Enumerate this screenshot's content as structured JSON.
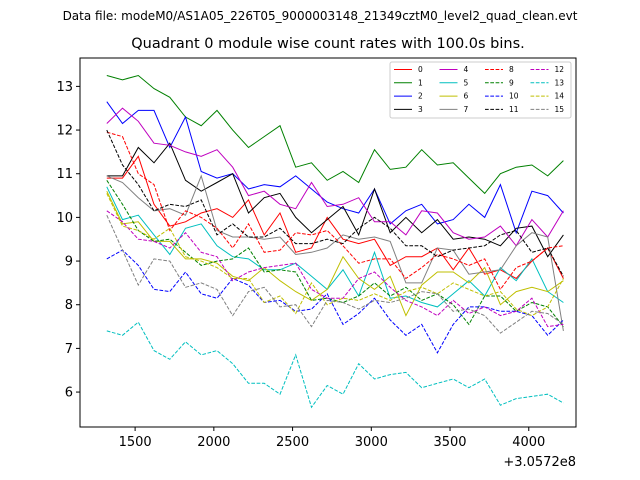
{
  "chart_data": {
    "type": "line",
    "suptitle": "Data file: modeM0/AS1A05_226T05_9000003148_21349cztM0_level2_quad_clean.evt",
    "title": "Quadrant 0 module wise count rates with 100.0s bins.",
    "xlabel": "",
    "ylabel": "",
    "x_offset_label": "+3.0572e8",
    "xlim": [
      1150,
      4300
    ],
    "ylim": [
      5.2,
      13.65
    ],
    "xticks": [
      1500,
      2000,
      2500,
      3000,
      3500,
      4000
    ],
    "yticks": [
      6,
      7,
      8,
      9,
      10,
      11,
      12,
      13
    ],
    "x": [
      1320,
      1420,
      1520,
      1620,
      1720,
      1820,
      1920,
      2020,
      2120,
      2220,
      2320,
      2420,
      2520,
      2620,
      2720,
      2820,
      2920,
      3020,
      3120,
      3220,
      3320,
      3420,
      3520,
      3620,
      3720,
      3820,
      3920,
      4020,
      4120,
      4220
    ],
    "legend": {
      "loc": "upper right",
      "ncol": 4
    },
    "series": [
      {
        "name": "0",
        "color": "#ff0000",
        "dash": "solid",
        "values": [
          10.9,
          10.9,
          11.4,
          10.3,
          9.8,
          9.9,
          10.1,
          10.2,
          10.0,
          10.4,
          9.6,
          10.1,
          9.2,
          9.3,
          10.0,
          9.5,
          9.4,
          9.5,
          8.9,
          9.1,
          9.1,
          9.3,
          8.8,
          9.3,
          8.7,
          8.8,
          8.6,
          9.0,
          9.3,
          8.6
        ]
      },
      {
        "name": "1",
        "color": "#008000",
        "dash": "solid",
        "values": [
          13.25,
          13.15,
          13.25,
          12.95,
          12.75,
          12.3,
          12.1,
          12.45,
          12.0,
          11.6,
          11.85,
          12.1,
          11.15,
          11.25,
          10.85,
          11.05,
          10.8,
          11.55,
          11.1,
          11.15,
          11.55,
          11.2,
          11.25,
          10.9,
          10.55,
          11.0,
          11.15,
          11.2,
          10.95,
          11.3
        ]
      },
      {
        "name": "2",
        "color": "#0000ff",
        "dash": "solid",
        "values": [
          12.65,
          12.15,
          12.45,
          12.45,
          11.6,
          12.3,
          11.05,
          10.9,
          11.0,
          10.65,
          10.75,
          10.7,
          10.95,
          10.65,
          10.35,
          10.2,
          10.1,
          10.65,
          9.85,
          10.15,
          10.3,
          9.85,
          9.95,
          10.3,
          10.0,
          10.75,
          9.65,
          10.6,
          10.5,
          10.1
        ]
      },
      {
        "name": "3",
        "color": "#000000",
        "dash": "solid",
        "values": [
          10.95,
          10.95,
          11.6,
          11.25,
          11.7,
          10.85,
          10.6,
          10.8,
          11.0,
          10.1,
          10.45,
          10.55,
          10.0,
          9.65,
          9.95,
          10.25,
          9.6,
          10.65,
          9.65,
          10.0,
          9.65,
          9.95,
          9.5,
          9.55,
          9.5,
          9.35,
          9.75,
          9.8,
          9.1,
          9.6
        ]
      },
      {
        "name": "4",
        "color": "#bf00bf",
        "dash": "solid",
        "values": [
          12.15,
          12.5,
          12.2,
          11.7,
          11.65,
          11.5,
          11.4,
          11.55,
          11.15,
          10.5,
          10.6,
          10.3,
          10.2,
          10.8,
          10.25,
          10.3,
          10.45,
          9.9,
          9.9,
          9.6,
          10.15,
          10.1,
          9.65,
          9.5,
          9.55,
          9.8,
          9.35,
          9.95,
          9.55,
          10.15
        ]
      },
      {
        "name": "5",
        "color": "#00bfbf",
        "dash": "solid",
        "values": [
          10.7,
          9.95,
          10.05,
          9.6,
          9.15,
          9.75,
          9.85,
          9.35,
          9.1,
          9.05,
          8.8,
          8.8,
          8.95,
          8.65,
          8.35,
          8.8,
          8.2,
          9.2,
          8.15,
          8.2,
          8.05,
          7.95,
          8.25,
          8.55,
          8.2,
          8.85,
          8.55,
          9.05,
          8.3,
          8.05
        ]
      },
      {
        "name": "6",
        "color": "#bfbf00",
        "dash": "solid",
        "values": [
          10.6,
          9.85,
          9.9,
          9.45,
          9.45,
          9.05,
          9.05,
          8.95,
          8.65,
          8.55,
          8.85,
          8.55,
          8.3,
          8.1,
          8.35,
          9.1,
          8.6,
          8.35,
          8.65,
          7.75,
          8.45,
          8.75,
          8.75,
          8.5,
          8.85,
          8.0,
          8.3,
          8.4,
          8.3,
          8.55
        ]
      },
      {
        "name": "7",
        "color": "#808080",
        "dash": "solid",
        "values": [
          10.95,
          10.8,
          10.45,
          10.15,
          10.2,
          10.05,
          10.95,
          9.7,
          9.55,
          9.55,
          9.5,
          9.55,
          9.15,
          9.2,
          9.3,
          9.6,
          9.5,
          9.55,
          9.45,
          8.5,
          8.5,
          9.3,
          9.25,
          8.7,
          8.75,
          8.8,
          9.35,
          9.65,
          9.55,
          7.4
        ]
      },
      {
        "name": "8",
        "color": "#ff0000",
        "dash": "dashed",
        "values": [
          11.95,
          11.85,
          11.0,
          10.75,
          9.7,
          10.15,
          10.0,
          9.75,
          9.3,
          9.85,
          9.2,
          9.25,
          9.65,
          9.6,
          9.7,
          9.35,
          8.95,
          9.05,
          9.05,
          8.6,
          8.85,
          9.15,
          9.05,
          8.9,
          9.05,
          8.35,
          8.85,
          9.0,
          9.3,
          9.35
        ]
      },
      {
        "name": "9",
        "color": "#008000",
        "dash": "dashed",
        "values": [
          10.85,
          10.3,
          9.7,
          9.45,
          9.5,
          9.2,
          8.9,
          9.0,
          9.05,
          9.3,
          8.75,
          8.8,
          8.75,
          8.1,
          8.15,
          8.05,
          8.2,
          8.5,
          8.2,
          8.4,
          8.1,
          8.25,
          8.0,
          7.55,
          8.2,
          8.2,
          7.85,
          8.05,
          7.95,
          7.5
        ]
      },
      {
        "name": "10",
        "color": "#0000ff",
        "dash": "dashed",
        "values": [
          9.05,
          9.25,
          8.9,
          8.35,
          8.3,
          8.75,
          8.25,
          8.15,
          8.6,
          8.45,
          8.05,
          8.1,
          7.85,
          7.9,
          8.25,
          7.55,
          7.8,
          8.15,
          7.65,
          7.3,
          7.55,
          6.9,
          7.55,
          7.95,
          7.95,
          7.85,
          7.85,
          7.75,
          7.3,
          7.65
        ]
      },
      {
        "name": "11",
        "color": "#000000",
        "dash": "dashed",
        "values": [
          12.0,
          11.2,
          10.75,
          10.15,
          10.3,
          10.25,
          10.4,
          9.6,
          9.85,
          9.55,
          9.55,
          9.75,
          9.4,
          9.4,
          9.5,
          9.4,
          9.75,
          10.0,
          9.75,
          9.35,
          9.35,
          9.1,
          9.25,
          9.3,
          9.35,
          9.6,
          9.7,
          9.2,
          9.3,
          8.65
        ]
      },
      {
        "name": "12",
        "color": "#bf00bf",
        "dash": "dashed",
        "values": [
          10.15,
          9.9,
          9.5,
          9.45,
          9.3,
          9.65,
          9.2,
          9.1,
          8.55,
          8.75,
          8.85,
          8.9,
          8.95,
          8.35,
          8.15,
          8.15,
          8.6,
          8.75,
          8.4,
          8.1,
          7.95,
          7.75,
          8.1,
          7.8,
          7.95,
          7.75,
          7.85,
          8.15,
          7.5,
          7.55
        ]
      },
      {
        "name": "13",
        "color": "#00bfbf",
        "dash": "dashed",
        "values": [
          7.4,
          7.3,
          7.6,
          6.95,
          6.75,
          7.15,
          6.85,
          6.95,
          6.65,
          6.2,
          6.2,
          5.95,
          6.85,
          5.65,
          6.15,
          5.95,
          6.65,
          6.3,
          6.4,
          6.45,
          6.1,
          6.2,
          6.3,
          6.1,
          6.3,
          5.7,
          5.85,
          5.9,
          5.95,
          5.75
        ]
      },
      {
        "name": "14",
        "color": "#bfbf00",
        "dash": "dashed",
        "values": [
          10.55,
          9.8,
          9.7,
          9.5,
          9.75,
          9.1,
          9.0,
          8.85,
          8.6,
          8.6,
          8.05,
          8.2,
          7.8,
          8.5,
          8.0,
          8.15,
          8.1,
          8.25,
          8.1,
          8.3,
          8.4,
          8.25,
          8.5,
          8.35,
          8.2,
          8.3,
          7.9,
          7.75,
          7.95,
          8.6
        ]
      },
      {
        "name": "15",
        "color": "#808080",
        "dash": "dashed",
        "values": [
          10.05,
          9.25,
          8.45,
          9.05,
          9.0,
          8.4,
          8.5,
          8.35,
          7.75,
          8.3,
          8.4,
          7.95,
          8.0,
          7.5,
          8.1,
          8.05,
          7.9,
          8.1,
          8.05,
          8.15,
          8.3,
          8.25,
          7.85,
          7.9,
          7.75,
          7.35,
          7.6,
          7.85,
          7.8,
          7.55
        ]
      }
    ]
  }
}
